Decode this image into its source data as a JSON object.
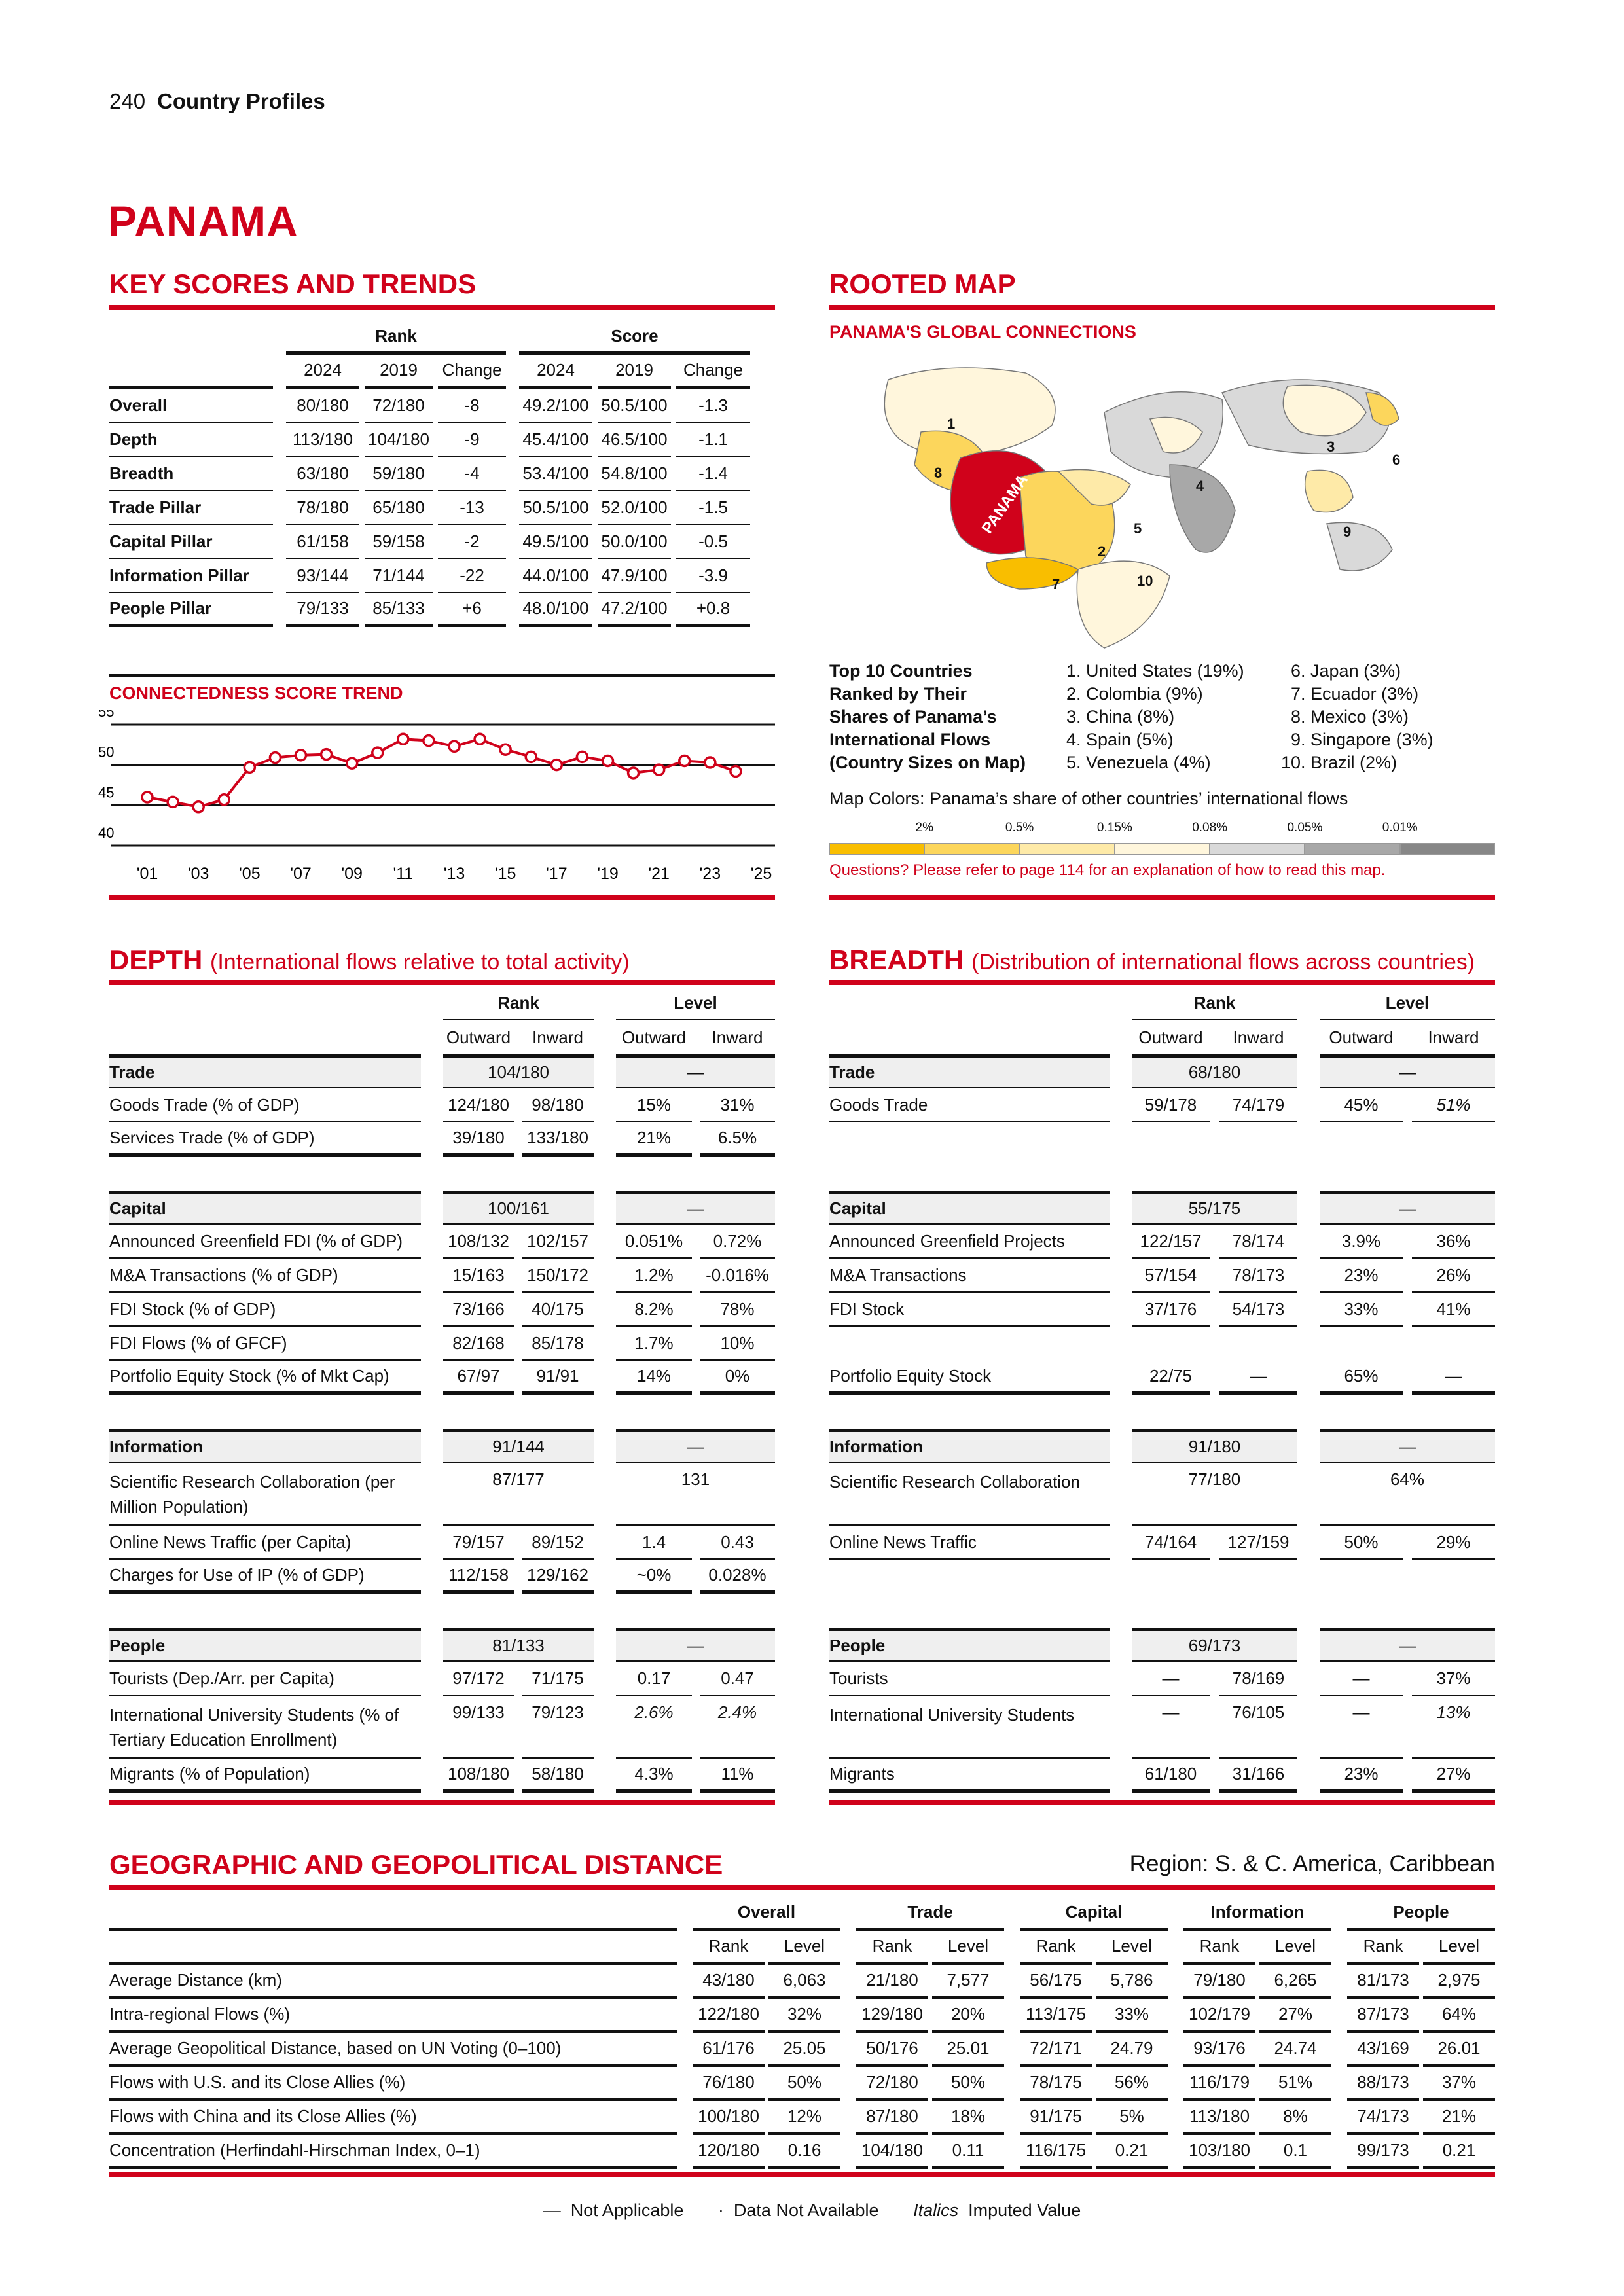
{
  "page": {
    "number": "240",
    "section": "Country Profiles"
  },
  "country": "PANAMA",
  "key_scores": {
    "title": "KEY SCORES AND TRENDS",
    "rank_label": "Rank",
    "score_label": "Score",
    "sub": [
      "2024",
      "2019",
      "Change",
      "2024",
      "2019",
      "Change"
    ],
    "rows": [
      {
        "label": "Overall",
        "cells": [
          "80/180",
          "72/180",
          "-8",
          "49.2/100",
          "50.5/100",
          "-1.3"
        ]
      },
      {
        "label": "Depth",
        "cells": [
          "113/180",
          "104/180",
          "-9",
          "45.4/100",
          "46.5/100",
          "-1.1"
        ]
      },
      {
        "label": "Breadth",
        "cells": [
          "63/180",
          "59/180",
          "-4",
          "53.4/100",
          "54.8/100",
          "-1.4"
        ]
      },
      {
        "label": "Trade Pillar",
        "cells": [
          "78/180",
          "65/180",
          "-13",
          "50.5/100",
          "52.0/100",
          "-1.5"
        ]
      },
      {
        "label": "Capital Pillar",
        "cells": [
          "61/158",
          "59/158",
          "-2",
          "49.5/100",
          "50.0/100",
          "-0.5"
        ]
      },
      {
        "label": "Information Pillar",
        "cells": [
          "93/144",
          "71/144",
          "-22",
          "44.0/100",
          "47.9/100",
          "-3.9"
        ]
      },
      {
        "label": "People Pillar",
        "cells": [
          "79/133",
          "85/133",
          "+6",
          "48.0/100",
          "47.2/100",
          "+0.8"
        ]
      }
    ]
  },
  "chart_data": {
    "type": "line",
    "title": "CONNECTEDNESS SCORE TREND",
    "x": [
      2001,
      2002,
      2003,
      2004,
      2005,
      2006,
      2007,
      2008,
      2009,
      2010,
      2011,
      2012,
      2013,
      2014,
      2015,
      2016,
      2017,
      2018,
      2019,
      2020,
      2021,
      2022,
      2023,
      2024
    ],
    "y": [
      46.0,
      45.4,
      44.8,
      45.7,
      49.7,
      50.9,
      51.2,
      51.3,
      50.2,
      51.5,
      53.2,
      53.0,
      52.3,
      53.2,
      51.9,
      51.0,
      50.0,
      51.0,
      50.5,
      49.0,
      49.4,
      50.5,
      50.3,
      49.2
    ],
    "xlim": [
      2001,
      2025
    ],
    "ylim": [
      40,
      55
    ],
    "yticks": [
      40,
      45,
      50,
      55
    ],
    "xticks": [
      2001,
      2003,
      2005,
      2007,
      2009,
      2011,
      2013,
      2015,
      2017,
      2019,
      2021,
      2023,
      2025
    ],
    "xticklabels": [
      "'01",
      "'03",
      "'05",
      "'07",
      "'09",
      "'11",
      "'13",
      "'15",
      "'17",
      "'19",
      "'21",
      "'23",
      "'25"
    ],
    "grid": true,
    "color": "#d0021b"
  },
  "rooted_map": {
    "title": "ROOTED MAP",
    "subtitle": "PANAMA'S GLOBAL CONNECTIONS",
    "map_label": "PANAMA",
    "map_numbers": [
      "1",
      "2",
      "3",
      "4",
      "5",
      "6",
      "7",
      "8",
      "9",
      "10"
    ],
    "top10_caption": [
      "Top 10 Countries",
      "Ranked by Their",
      "Shares of Panama’s",
      "International Flows",
      "(Country Sizes on Map)"
    ],
    "top10": [
      "1. United States (19%)",
      "2. Colombia (9%)",
      "3. China (8%)",
      "4. Spain (5%)",
      "5. Venezuela (4%)",
      "6. Japan (3%)",
      "7. Ecuador (3%)",
      "8. Mexico (3%)",
      "9. Singapore (3%)",
      "10. Brazil (2%)"
    ],
    "colors_caption": "Map Colors: Panama’s share of other countries’ international flows",
    "legend_ticks": [
      "2%",
      "0.5%",
      "0.15%",
      "0.08%",
      "0.05%",
      "0.01%"
    ],
    "legend_colors": [
      "#f9be00",
      "#fcd65c",
      "#feeaa8",
      "#fff6dc",
      "#d9d9d9",
      "#a8a8a8",
      "#878787"
    ],
    "note": "Questions? Please refer to page 114 for an explanation of how to read this map."
  },
  "depth": {
    "title": "DEPTH",
    "subtitle": "(International flows relative to total activity)",
    "rank_label": "Rank",
    "level_label": "Level",
    "sub": [
      "Outward",
      "Inward",
      "Outward",
      "Inward"
    ],
    "sections": [
      {
        "name": "Trade",
        "rank": "104/180",
        "level": "—",
        "rows": [
          {
            "label": "Goods Trade (% of GDP)",
            "cells": [
              "124/180",
              "98/180",
              "15%",
              "31%"
            ]
          },
          {
            "label": "Services Trade (% of GDP)",
            "cells": [
              "39/180",
              "133/180",
              "21%",
              "6.5%"
            ]
          }
        ]
      },
      {
        "name": "Capital",
        "rank": "100/161",
        "level": "—",
        "rows": [
          {
            "label": "Announced Greenfield FDI (% of GDP)",
            "cells": [
              "108/132",
              "102/157",
              "0.051%",
              "0.72%"
            ]
          },
          {
            "label": "M&A Transactions (% of GDP)",
            "cells": [
              "15/163",
              "150/172",
              "1.2%",
              "-0.016%"
            ]
          },
          {
            "label": "FDI Stock (% of GDP)",
            "cells": [
              "73/166",
              "40/175",
              "8.2%",
              "78%"
            ]
          },
          {
            "label": "FDI Flows (% of GFCF)",
            "cells": [
              "82/168",
              "85/178",
              "1.7%",
              "10%"
            ]
          },
          {
            "label": "Portfolio Equity Stock (% of Mkt Cap)",
            "cells": [
              "67/97",
              "91/91",
              "14%",
              "0%"
            ]
          }
        ]
      },
      {
        "name": "Information",
        "rank": "91/144",
        "level": "—",
        "rows": [
          {
            "label": "Scientific Research Collaboration (per Million Population)",
            "span": true,
            "rank": "87/177",
            "level": "131"
          },
          {
            "label": "Online News Traffic (per Capita)",
            "cells": [
              "79/157",
              "89/152",
              "1.4",
              "0.43"
            ]
          },
          {
            "label": "Charges for Use of IP (% of GDP)",
            "cells": [
              "112/158",
              "129/162",
              "~0%",
              "0.028%"
            ]
          }
        ]
      },
      {
        "name": "People",
        "rank": "81/133",
        "level": "—",
        "rows": [
          {
            "label": "Tourists (Dep./Arr. per Capita)",
            "cells": [
              "97/172",
              "71/175",
              "0.17",
              "0.47"
            ]
          },
          {
            "label": "International University Students (% of Tertiary Education Enrollment)",
            "double": true,
            "cells": [
              "99/133",
              "79/123",
              {
                "v": "2.6%",
                "italic": true
              },
              {
                "v": "2.4%",
                "italic": true
              }
            ]
          },
          {
            "label": "Migrants (% of Population)",
            "cells": [
              "108/180",
              "58/180",
              "4.3%",
              "11%"
            ]
          }
        ]
      }
    ]
  },
  "breadth": {
    "title": "BREADTH",
    "subtitle": "(Distribution of international flows across countries)",
    "rank_label": "Rank",
    "level_label": "Level",
    "sub": [
      "Outward",
      "Inward",
      "Outward",
      "Inward"
    ],
    "sections": [
      {
        "name": "Trade",
        "rank": "68/180",
        "level": "—",
        "rows": [
          {
            "label": "Goods Trade",
            "cells": [
              "59/178",
              "74/179",
              "45%",
              {
                "v": "51%",
                "italic": true
              }
            ]
          },
          {
            "empty": true
          }
        ]
      },
      {
        "name": "Capital",
        "rank": "55/175",
        "level": "—",
        "rows": [
          {
            "label": "Announced Greenfield Projects",
            "cells": [
              "122/157",
              "78/174",
              "3.9%",
              "36%"
            ]
          },
          {
            "label": "M&A Transactions",
            "cells": [
              "57/154",
              "78/173",
              "23%",
              "26%"
            ]
          },
          {
            "label": "FDI Stock",
            "cells": [
              "37/176",
              "54/173",
              "33%",
              "41%"
            ]
          },
          {
            "empty": true
          },
          {
            "label": "Portfolio Equity Stock",
            "cells": [
              "22/75",
              "—",
              "65%",
              "—"
            ]
          }
        ]
      },
      {
        "name": "Information",
        "rank": "91/180",
        "level": "—",
        "rows": [
          {
            "label": "Scientific Research Collaboration",
            "span": true,
            "rank": "77/180",
            "level": "64%"
          },
          {
            "label": "Online News Traffic",
            "cells": [
              "74/164",
              "127/159",
              "50%",
              "29%"
            ]
          },
          {
            "empty": true
          }
        ]
      },
      {
        "name": "People",
        "rank": "69/173",
        "level": "—",
        "rows": [
          {
            "label": "Tourists",
            "cells": [
              "—",
              "78/169",
              "—",
              "37%"
            ]
          },
          {
            "label": "International University Students",
            "double": true,
            "cells": [
              "—",
              "76/105",
              "—",
              {
                "v": "13%",
                "italic": true
              }
            ]
          },
          {
            "label": "Migrants",
            "cells": [
              "61/180",
              "31/166",
              "23%",
              "27%"
            ]
          }
        ]
      }
    ]
  },
  "geo": {
    "title": "GEOGRAPHIC AND GEOPOLITICAL DISTANCE",
    "region": "Region: S. & C. America, Caribbean",
    "groups": [
      "Overall",
      "Trade",
      "Capital",
      "Information",
      "People"
    ],
    "sub": [
      "Rank",
      "Level"
    ],
    "rows": [
      {
        "label": "Average Distance (km)",
        "cells": [
          "43/180",
          "6,063",
          "21/180",
          "7,577",
          "56/175",
          "5,786",
          "79/180",
          "6,265",
          "81/173",
          "2,975"
        ]
      },
      {
        "label": "Intra-regional Flows (%)",
        "cells": [
          "122/180",
          "32%",
          "129/180",
          "20%",
          "113/175",
          "33%",
          "102/179",
          "27%",
          "87/173",
          "64%"
        ]
      },
      {
        "label": "Average Geopolitical Distance, based on UN Voting (0–100)",
        "cells": [
          "61/176",
          "25.05",
          "50/176",
          "25.01",
          "72/171",
          "24.79",
          "93/176",
          "24.74",
          "43/169",
          "26.01"
        ]
      },
      {
        "label": "Flows with U.S. and its Close Allies (%)",
        "cells": [
          "76/180",
          "50%",
          "72/180",
          "50%",
          "78/175",
          "56%",
          "116/179",
          "51%",
          "88/173",
          "37%"
        ]
      },
      {
        "label": "Flows with China and its Close Allies (%)",
        "cells": [
          "100/180",
          "12%",
          "87/180",
          "18%",
          "91/175",
          "5%",
          "113/180",
          "8%",
          "74/173",
          "21%"
        ]
      },
      {
        "label": "Concentration (Herfindahl-Hirschman Index, 0–1)",
        "cells": [
          "120/180",
          "0.16",
          "104/180",
          "0.11",
          "116/175",
          "0.21",
          "103/180",
          "0.1",
          "99/173",
          "0.21"
        ]
      }
    ]
  },
  "footnote": {
    "not_applicable_symbol": "—",
    "not_applicable": "Not Applicable",
    "not_available_symbol": "·",
    "not_available": "Data Not Available",
    "italics_symbol": "Italics",
    "italics": "Imputed Value"
  }
}
